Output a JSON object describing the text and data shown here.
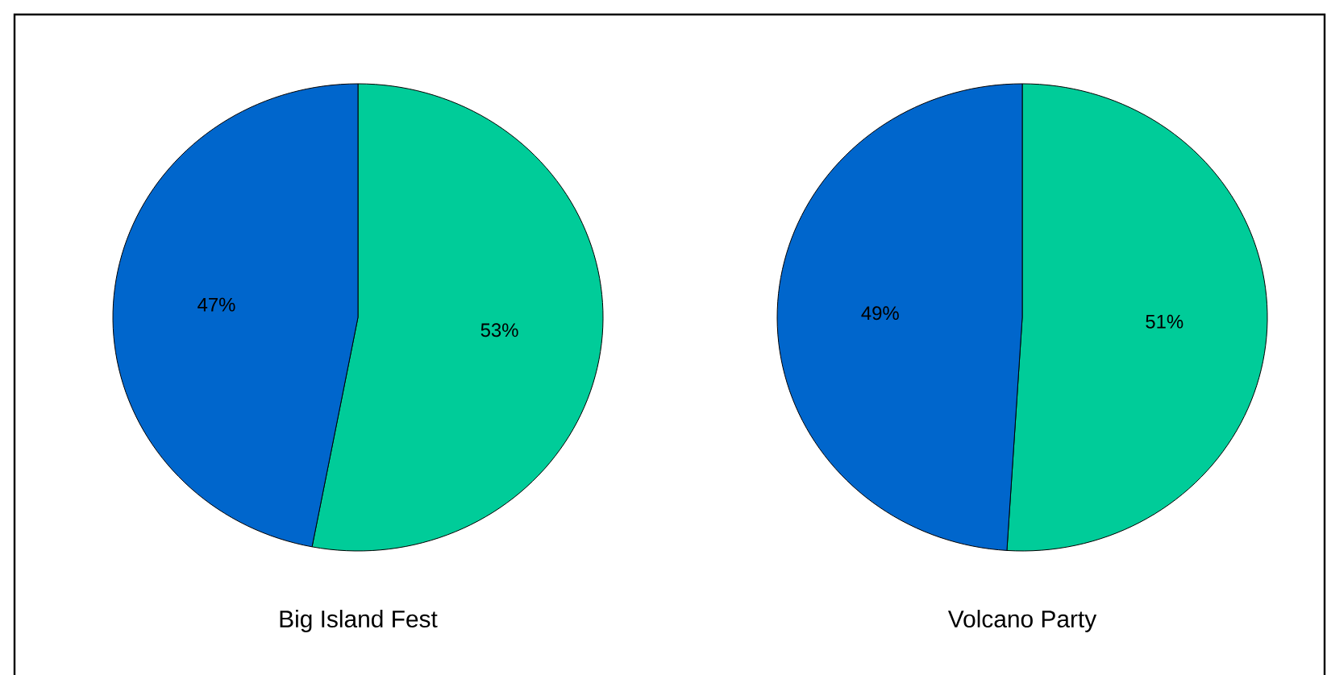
{
  "chart_data": [
    {
      "type": "pie",
      "title": "Big Island Fest",
      "categories": [
        null,
        null
      ],
      "values": [
        53,
        47
      ],
      "colors": [
        "#00cc99",
        "#0066cc"
      ],
      "value_labels": [
        "53%",
        "47%"
      ]
    },
    {
      "type": "pie",
      "title": "Volcano Party",
      "categories": [
        null,
        null
      ],
      "values": [
        51,
        49
      ],
      "colors": [
        "#00cc99",
        "#0066cc"
      ],
      "value_labels": [
        "51%",
        "49%"
      ]
    }
  ]
}
